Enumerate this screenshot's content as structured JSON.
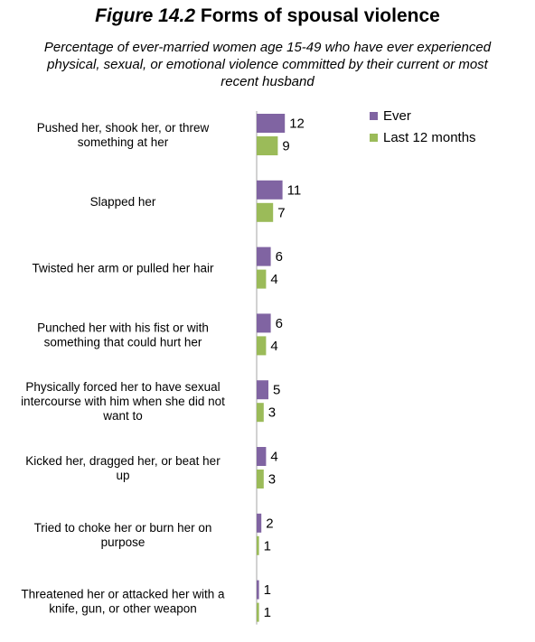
{
  "figure_number": "Figure 14.2",
  "figure_title": "Forms of spousal violence",
  "subtitle": "Percentage of ever-married women age 15-49 who have ever experienced physical, sexual, or emotional violence committed by their current or most recent husband",
  "colors": {
    "ever": "#8064a2",
    "last12": "#9bbb59",
    "axis": "#a6a6a6"
  },
  "chart_data": {
    "type": "bar",
    "orientation": "horizontal",
    "categories": [
      [
        "Pushed her, shook her, or threw",
        "something at her"
      ],
      [
        "Slapped her"
      ],
      [
        "Twisted her arm or pulled her hair"
      ],
      [
        "Punched her with his fist or with",
        "something that could hurt her"
      ],
      [
        "Physically forced her to have sexual",
        "intercourse with him when she did not",
        "want to"
      ],
      [
        "Kicked her, dragged her, or beat her",
        "up"
      ],
      [
        "Tried to choke her or burn her on",
        "purpose"
      ],
      [
        "Threatened her or attacked her with a",
        "knife, gun, or other weapon"
      ]
    ],
    "series": [
      {
        "name": "Ever",
        "values": [
          12,
          11,
          6,
          6,
          5,
          4,
          2,
          1
        ]
      },
      {
        "name": "Last 12 months",
        "values": [
          9,
          7,
          4,
          4,
          3,
          3,
          1,
          1
        ]
      }
    ],
    "legend_position": "top-right",
    "grid": false
  }
}
